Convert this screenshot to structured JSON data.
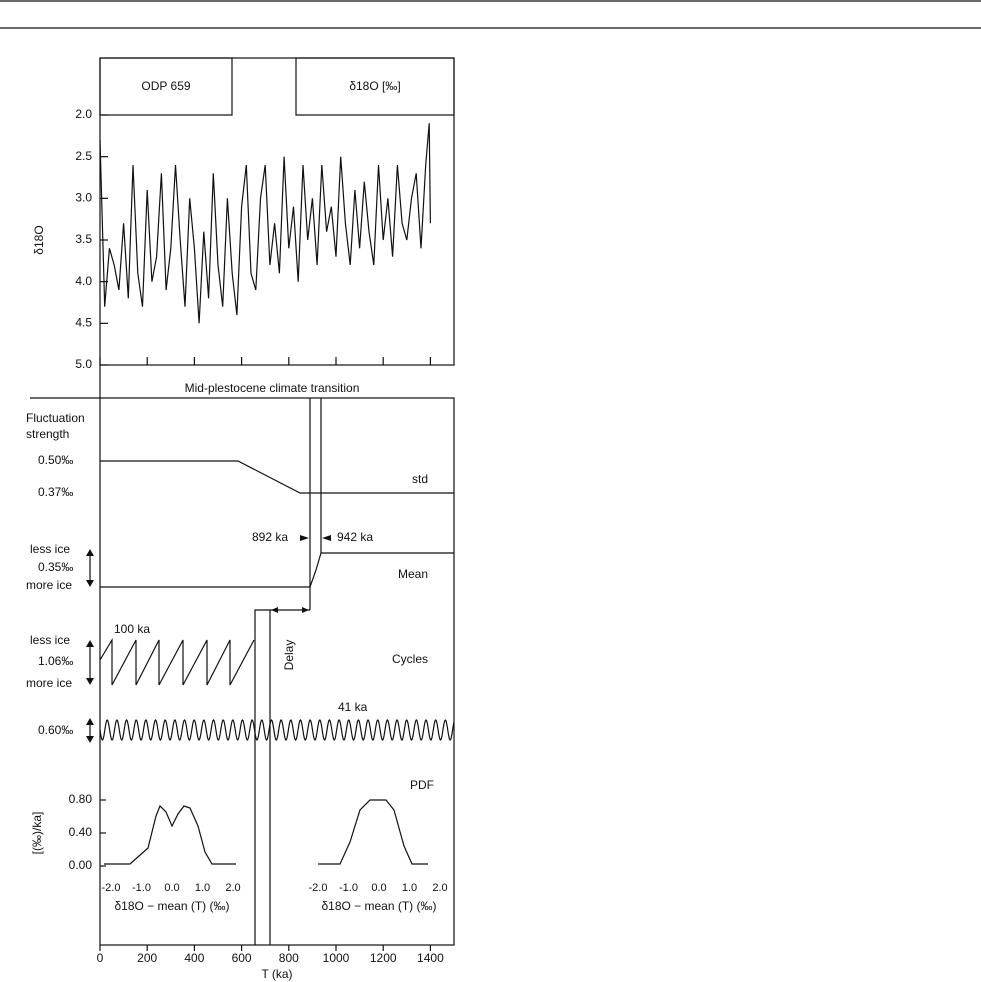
{
  "chart_data": {
    "type": "line",
    "panel_label": "ODP 659",
    "series_label": "δ18O [‰]",
    "ylabel": "δ18O",
    "xlabel": "T (ka)",
    "x": [
      0,
      20,
      40,
      60,
      80,
      100,
      120,
      140,
      160,
      180,
      200,
      220,
      240,
      260,
      280,
      300,
      320,
      340,
      360,
      380,
      400,
      420,
      440,
      460,
      480,
      500,
      520,
      540,
      560,
      580,
      600,
      620,
      640,
      660,
      680,
      700,
      720,
      740,
      760,
      780,
      800,
      820,
      840,
      860,
      880,
      900,
      920,
      940,
      960,
      980,
      1000,
      1020,
      1040,
      1060,
      1080,
      1100,
      1120,
      1140,
      1160,
      1180,
      1200,
      1220,
      1240,
      1260,
      1280,
      1300,
      1320,
      1340,
      1360,
      1380,
      1395,
      1400
    ],
    "values": [
      2.3,
      4.3,
      3.6,
      3.8,
      4.1,
      3.3,
      4.2,
      2.6,
      3.9,
      4.3,
      2.9,
      4.0,
      3.7,
      2.7,
      4.1,
      3.6,
      2.6,
      3.5,
      4.3,
      3.0,
      3.6,
      4.5,
      3.4,
      4.2,
      2.7,
      3.8,
      4.3,
      3.0,
      3.9,
      4.4,
      3.1,
      2.6,
      3.9,
      4.1,
      3.0,
      2.6,
      3.8,
      3.3,
      3.9,
      2.5,
      3.6,
      3.1,
      4.0,
      2.6,
      3.5,
      3.0,
      3.8,
      2.6,
      3.4,
      3.1,
      3.7,
      2.5,
      3.3,
      3.8,
      2.9,
      3.6,
      2.8,
      3.4,
      3.8,
      2.6,
      3.5,
      3.0,
      3.7,
      2.6,
      3.3,
      3.5,
      3.0,
      2.7,
      3.6,
      2.6,
      2.1,
      3.3
    ],
    "color": "#111111",
    "xlim": [
      0,
      1500
    ],
    "xticks": [
      0,
      200,
      400,
      600,
      800,
      1000,
      1200,
      1400
    ],
    "ylim": [
      2,
      5
    ],
    "yticks": [
      {
        "value": 2,
        "label": "2.0"
      },
      {
        "value": 2.5,
        "label": "2.5"
      },
      {
        "value": 3,
        "label": "3.0"
      },
      {
        "value": 3.5,
        "label": "3.5"
      },
      {
        "value": 4,
        "label": "4.0"
      },
      {
        "value": 4.5,
        "label": "4.5"
      },
      {
        "value": 5,
        "label": "5.0"
      }
    ]
  },
  "schematic": {
    "title": "Mid-plestocene climate transition",
    "strength_label": [
      "Fluctuation",
      "strength"
    ],
    "std_levels": [
      "0.50‰",
      "0.37‰"
    ],
    "std_label": "std",
    "transition": [
      "892 ka",
      "942 ka"
    ],
    "mean_labels": [
      "less ice",
      "0.35‰",
      "more ice"
    ],
    "mean_label": "Mean",
    "cycle_period": "100 ka",
    "cycle_labels": [
      "less ice",
      "1.06‰",
      "more ice"
    ],
    "cycles_label": "Cycles",
    "delay_label": "Delay",
    "obliquity_period": "41 ka",
    "obliquity_amplitude": "0.60‰",
    "pdf_label": "PDF",
    "pdf_ylabel": "[(‰)/ka]",
    "pdf_xlabel": "δ18O − mean (T) (‰)",
    "inset_xlim": [
      -2,
      2
    ],
    "inset_xticks": [
      {
        "value": -2,
        "label": "-2.0"
      },
      {
        "value": -1,
        "label": "-1.0"
      },
      {
        "value": 0,
        "label": "0.0"
      },
      {
        "value": 1,
        "label": "1.0"
      },
      {
        "value": 2,
        "label": "2.0"
      }
    ],
    "inset_ylim": [
      0,
      0.8
    ],
    "inset_yticks": [
      {
        "value": 0,
        "label": "0.00"
      },
      {
        "value": 0.4,
        "label": "0.40"
      },
      {
        "value": 0.8,
        "label": "0.80"
      }
    ]
  }
}
